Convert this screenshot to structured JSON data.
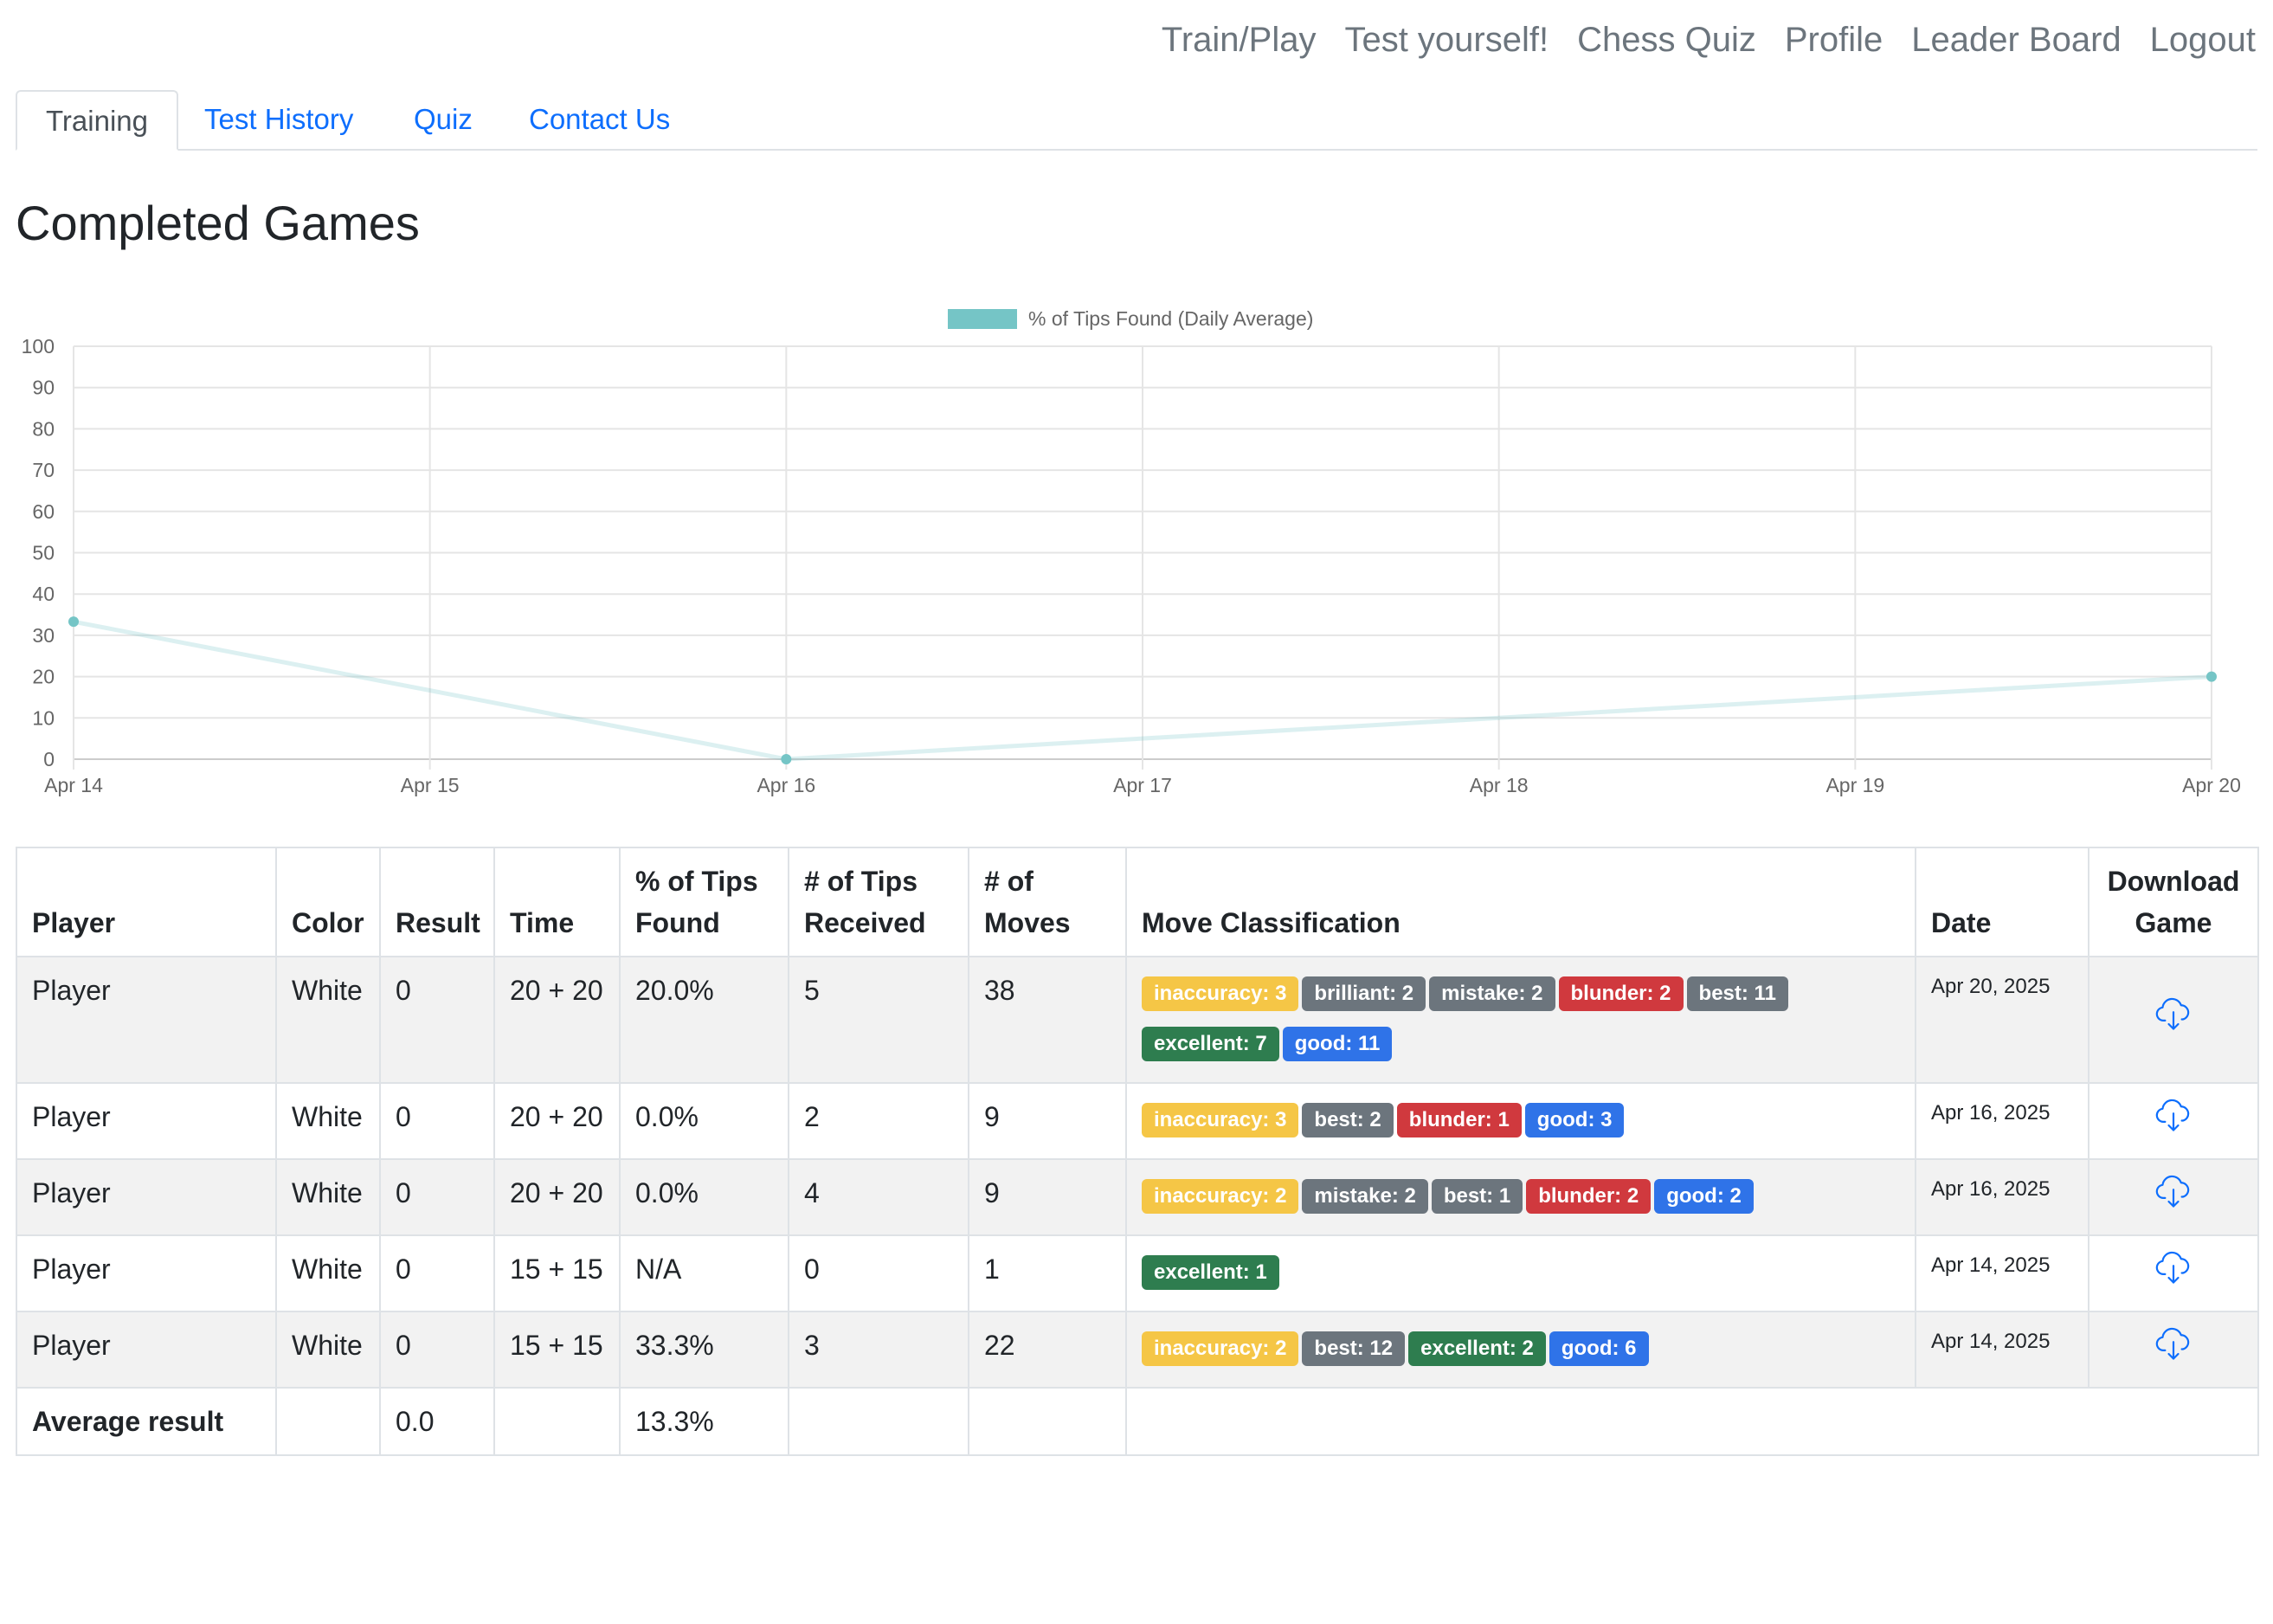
{
  "nav": {
    "items": [
      "Train/Play",
      "Test yourself!",
      "Chess Quiz",
      "Profile",
      "Leader Board",
      "Logout"
    ]
  },
  "tabs": {
    "items": [
      "Training",
      "Test History",
      "Quiz",
      "Contact Us"
    ],
    "active": "Training"
  },
  "page_title": "Completed Games",
  "colors": {
    "line": "#75c5c6",
    "inaccuracy": "#f5c646",
    "brilliant": "#6c757d",
    "mistake": "#6c757d",
    "best": "#6c757d",
    "blunder": "#d0393e",
    "excellent": "#2e7d4f",
    "good": "#2f73e8",
    "link": "#0d6efd"
  },
  "chart_data": {
    "type": "line",
    "legend": "% of Tips Found (Daily Average)",
    "legend_position": "top",
    "grid": true,
    "x_ticks": [
      "Apr 14",
      "Apr 15",
      "Apr 16",
      "Apr 17",
      "Apr 18",
      "Apr 19",
      "Apr 20"
    ],
    "y_ticks": [
      0,
      10,
      20,
      30,
      40,
      50,
      60,
      70,
      80,
      90,
      100
    ],
    "ylim": [
      0,
      100
    ],
    "series": [
      {
        "name": "% of Tips Found (Daily Average)",
        "points": [
          {
            "x": "Apr 14",
            "y": 33.3
          },
          {
            "x": "Apr 16",
            "y": 0
          },
          {
            "x": "Apr 20",
            "y": 20
          }
        ]
      }
    ]
  },
  "table": {
    "headers": [
      "Player",
      "Color",
      "Result",
      "Time",
      "% of Tips Found",
      "# of Tips Received",
      "# of Moves",
      "Move Classification",
      "Date",
      "Download Game"
    ],
    "rows": [
      {
        "player": "Player",
        "color": "White",
        "result": "0",
        "time": "20 + 20",
        "pct": "20.0%",
        "tips": "5",
        "moves": "38",
        "badges": [
          {
            "text": "inaccuracy: 3",
            "kind": "inaccuracy"
          },
          {
            "text": "brilliant: 2",
            "kind": "brilliant"
          },
          {
            "text": "mistake: 2",
            "kind": "mistake"
          },
          {
            "text": "blunder: 2",
            "kind": "blunder"
          },
          {
            "text": "best: 11",
            "kind": "best"
          },
          {
            "text": "excellent: 7",
            "kind": "excellent"
          },
          {
            "text": "good: 11",
            "kind": "good"
          }
        ],
        "date": "Apr 20, 2025"
      },
      {
        "player": "Player",
        "color": "White",
        "result": "0",
        "time": "20 + 20",
        "pct": "0.0%",
        "tips": "2",
        "moves": "9",
        "badges": [
          {
            "text": "inaccuracy: 3",
            "kind": "inaccuracy"
          },
          {
            "text": "best: 2",
            "kind": "best"
          },
          {
            "text": "blunder: 1",
            "kind": "blunder"
          },
          {
            "text": "good: 3",
            "kind": "good"
          }
        ],
        "date": "Apr 16, 2025"
      },
      {
        "player": "Player",
        "color": "White",
        "result": "0",
        "time": "20 + 20",
        "pct": "0.0%",
        "tips": "4",
        "moves": "9",
        "badges": [
          {
            "text": "inaccuracy: 2",
            "kind": "inaccuracy"
          },
          {
            "text": "mistake: 2",
            "kind": "mistake"
          },
          {
            "text": "best: 1",
            "kind": "best"
          },
          {
            "text": "blunder: 2",
            "kind": "blunder"
          },
          {
            "text": "good: 2",
            "kind": "good"
          }
        ],
        "date": "Apr 16, 2025"
      },
      {
        "player": "Player",
        "color": "White",
        "result": "0",
        "time": "15 + 15",
        "pct": "N/A",
        "tips": "0",
        "moves": "1",
        "badges": [
          {
            "text": "excellent: 1",
            "kind": "excellent"
          }
        ],
        "date": "Apr 14, 2025"
      },
      {
        "player": "Player",
        "color": "White",
        "result": "0",
        "time": "15 + 15",
        "pct": "33.3%",
        "tips": "3",
        "moves": "22",
        "badges": [
          {
            "text": "inaccuracy: 2",
            "kind": "inaccuracy"
          },
          {
            "text": "best: 12",
            "kind": "best"
          },
          {
            "text": "excellent: 2",
            "kind": "excellent"
          },
          {
            "text": "good: 6",
            "kind": "good"
          }
        ],
        "date": "Apr 14, 2025"
      }
    ],
    "footer": {
      "label": "Average result",
      "result": "0.0",
      "pct": "13.3%"
    },
    "download_icon": "cloud-download-icon"
  }
}
